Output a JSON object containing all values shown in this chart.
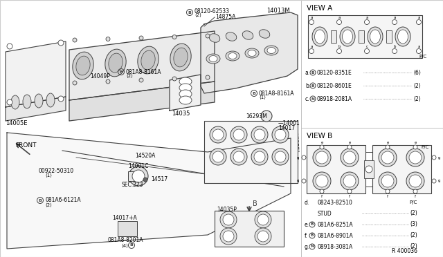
{
  "bg_color": "#ffffff",
  "line_color": "#404040",
  "text_color": "#000000",
  "view_a_title": "VIEW A",
  "view_b_title": "VIEW B",
  "ref_code": "R 400036",
  "parts_view_a": [
    [
      "a.",
      "B",
      "08120-8351E",
      "(6)"
    ],
    [
      "b.",
      "B",
      "08120-8601E",
      "(2)"
    ],
    [
      "c.",
      "N",
      "08918-2081A",
      "(2)"
    ]
  ],
  "parts_view_b": [
    [
      "d.",
      " ",
      "08243-82510",
      "P/C"
    ],
    [
      " ",
      " ",
      "STUD",
      "(2)"
    ],
    [
      "e.",
      "B",
      "081A6-8251A",
      "(3)"
    ],
    [
      "f.",
      "B",
      "081A6-8901A",
      "(2)"
    ],
    [
      "g.",
      "N",
      "08918-3081A",
      "(2)"
    ]
  ]
}
